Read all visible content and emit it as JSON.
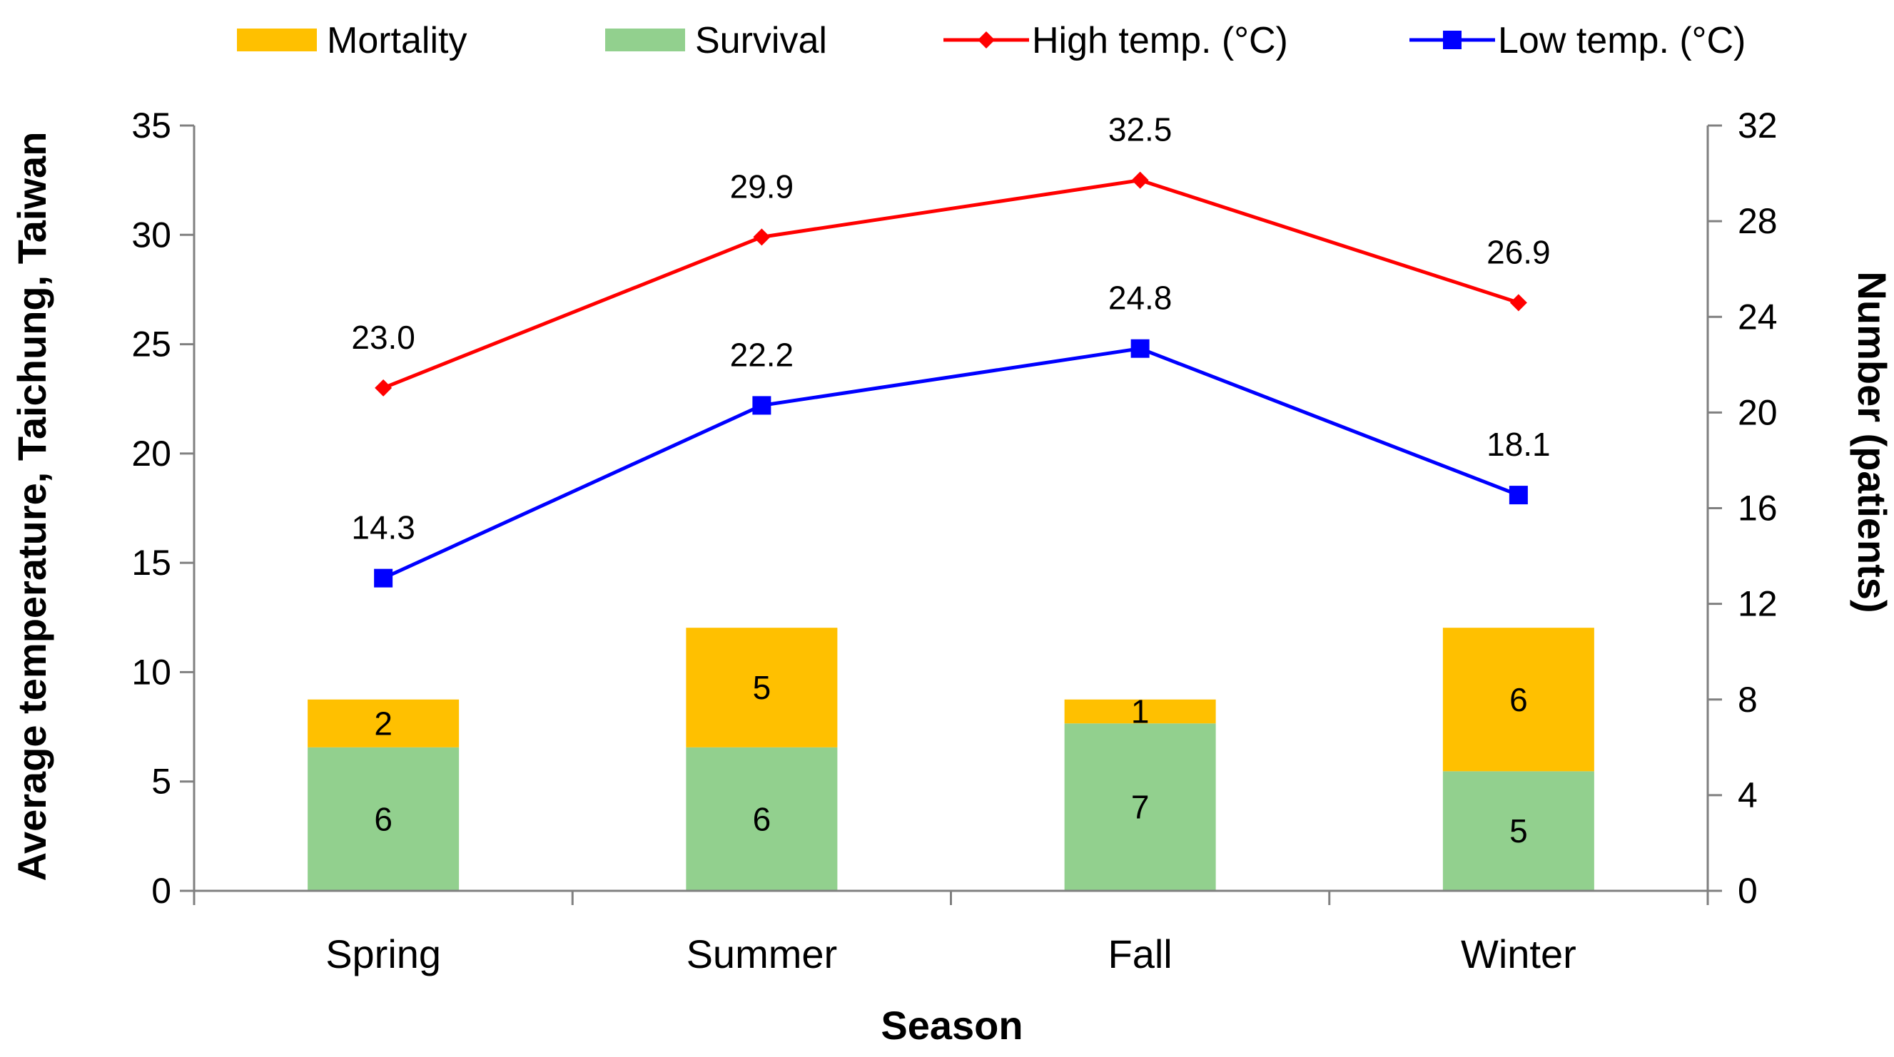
{
  "chart_data": {
    "type": "bar+line",
    "title": "",
    "xlabel": "Season",
    "ylabel_left": "Average temperature, Taichung, Taiwan",
    "ylabel_right": "Number (patients)",
    "categories": [
      "Spring",
      "Summer",
      "Fall",
      "Winter"
    ],
    "ylim_left": [
      0,
      35
    ],
    "yticks_left": [
      "0",
      "5",
      "10",
      "15",
      "20",
      "25",
      "30",
      "35"
    ],
    "ylim_right": [
      0,
      32
    ],
    "yticks_right": [
      "0",
      "4",
      "8",
      "12",
      "16",
      "20",
      "24",
      "28",
      "32"
    ],
    "grid": false,
    "legend_position": "top",
    "bar_series": [
      {
        "name": "Survival",
        "axis": "right",
        "values": [
          6,
          6,
          7,
          5
        ],
        "labels": [
          "6",
          "6",
          "7",
          "5"
        ],
        "color": "#92D08E"
      },
      {
        "name": "Mortality",
        "axis": "right",
        "values": [
          2,
          5,
          1,
          6
        ],
        "labels": [
          "2",
          "5",
          "1",
          "6"
        ],
        "color": "#FFC000"
      }
    ],
    "line_series": [
      {
        "name": "High temp. (°C)",
        "axis": "left",
        "values": [
          23.0,
          29.9,
          32.5,
          26.9
        ],
        "labels": [
          "23.0",
          "29.9",
          "32.5",
          "26.9"
        ],
        "color": "#FF0000",
        "marker": "diamond"
      },
      {
        "name": "Low temp. (°C)",
        "axis": "left",
        "values": [
          14.3,
          22.2,
          24.8,
          18.1
        ],
        "labels": [
          "14.3",
          "22.2",
          "24.8",
          "18.1"
        ],
        "color": "#0000FF",
        "marker": "square"
      }
    ],
    "legend": [
      {
        "name": "Mortality",
        "kind": "bar",
        "color": "#FFC000"
      },
      {
        "name": "Survival",
        "kind": "bar",
        "color": "#92D08E"
      },
      {
        "name": "High temp. (°C)",
        "kind": "line",
        "color": "#FF0000",
        "marker": "diamond"
      },
      {
        "name": "Low temp. (°C)",
        "kind": "line",
        "color": "#0000FF",
        "marker": "square"
      }
    ]
  }
}
